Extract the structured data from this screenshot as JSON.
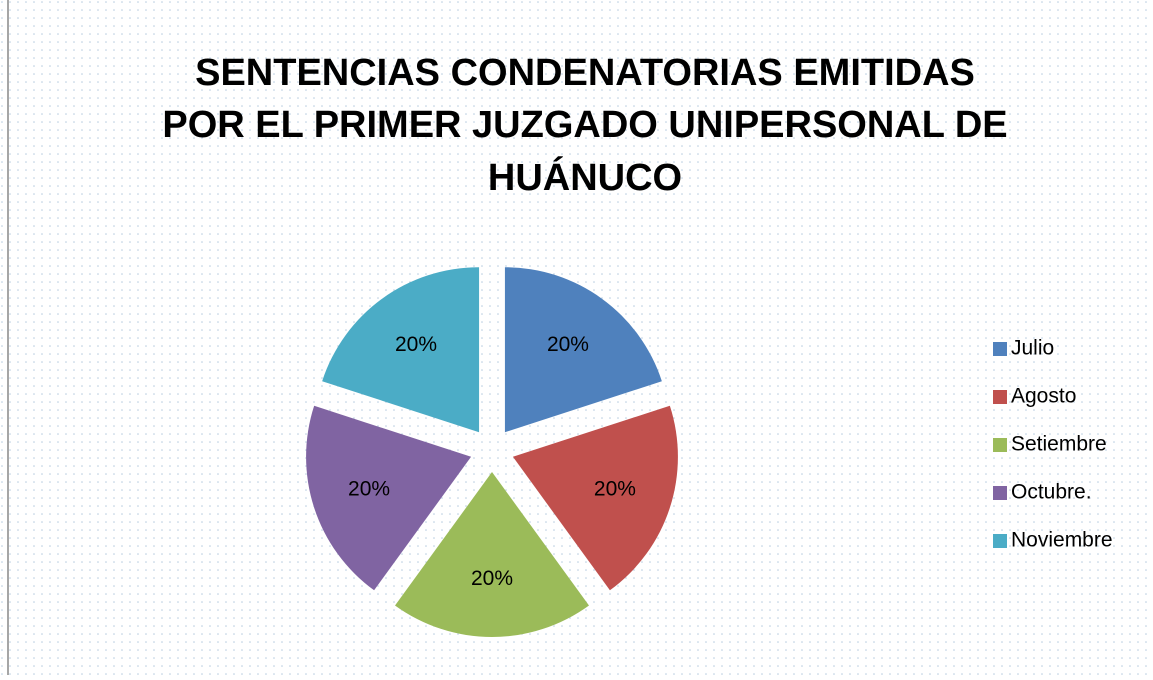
{
  "chart_data": {
    "type": "pie",
    "title": [
      "SENTENCIAS CONDENATORIAS EMITIDAS",
      "POR EL PRIMER JUZGADO UNIPERSONAL DE",
      "HUÁNUCO"
    ],
    "categories": [
      "Julio",
      "Agosto",
      "Setiembre",
      "Octubre.",
      "Noviembre"
    ],
    "values": [
      20,
      20,
      20,
      20,
      20
    ],
    "value_labels": [
      "20%",
      "20%",
      "20%",
      "20%",
      "20%"
    ],
    "colors": [
      "#4f81bd",
      "#c0504d",
      "#9bbb59",
      "#8064a2",
      "#4bacc6"
    ],
    "legend": "right"
  }
}
